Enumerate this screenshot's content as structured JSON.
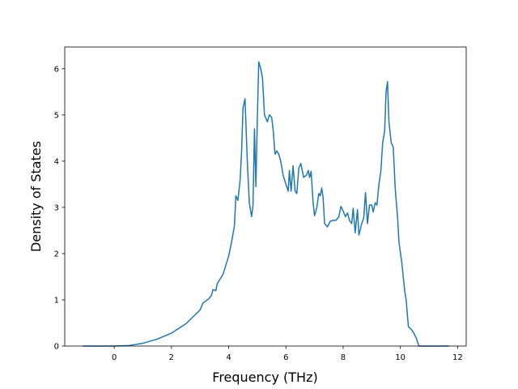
{
  "chart_data": {
    "type": "line",
    "xlabel": "Frequency (THz)",
    "ylabel": "Density of States",
    "color": "#1f77b4",
    "x": [
      -1.1,
      0,
      0.5,
      1,
      1.5,
      2,
      2.5,
      3,
      3.1,
      3.3,
      3.4,
      3.45,
      3.55,
      3.6,
      3.8,
      3.9,
      4.0,
      4.1,
      4.2,
      4.25,
      4.32,
      4.4,
      4.45,
      4.5,
      4.57,
      4.65,
      4.72,
      4.8,
      4.85,
      4.9,
      4.95,
      5.0,
      5.05,
      5.12,
      5.18,
      5.25,
      5.35,
      5.42,
      5.5,
      5.55,
      5.62,
      5.68,
      5.75,
      5.82,
      5.9,
      6.0,
      6.08,
      6.12,
      6.18,
      6.25,
      6.32,
      6.38,
      6.45,
      6.52,
      6.62,
      6.72,
      6.78,
      6.83,
      6.88,
      6.95,
      7.0,
      7.08,
      7.15,
      7.2,
      7.25,
      7.3,
      7.35,
      7.45,
      7.55,
      7.65,
      7.75,
      7.85,
      7.92,
      8.0,
      8.08,
      8.15,
      8.22,
      8.3,
      8.35,
      8.42,
      8.5,
      8.55,
      8.65,
      8.72,
      8.78,
      8.85,
      8.92,
      9.0,
      9.05,
      9.12,
      9.18,
      9.25,
      9.32,
      9.38,
      9.45,
      9.5,
      9.55,
      9.6,
      9.68,
      9.75,
      9.82,
      9.9,
      9.95,
      10.05,
      10.1,
      10.15,
      10.2,
      10.28,
      10.35,
      10.45,
      10.55,
      10.65,
      11.0,
      11.7
    ],
    "values": [
      0,
      0,
      0.01,
      0.06,
      0.15,
      0.28,
      0.48,
      0.78,
      0.93,
      1.02,
      1.1,
      1.22,
      1.2,
      1.35,
      1.55,
      1.75,
      1.95,
      2.25,
      2.6,
      3.25,
      3.15,
      3.6,
      4.2,
      5.15,
      5.35,
      4.0,
      3.1,
      2.8,
      3.05,
      4.7,
      3.45,
      4.9,
      6.15,
      6.0,
      5.8,
      5.0,
      4.85,
      5.0,
      4.95,
      4.7,
      4.15,
      4.22,
      4.15,
      4.0,
      3.7,
      3.5,
      3.35,
      3.8,
      3.35,
      3.9,
      3.35,
      3.3,
      3.85,
      3.95,
      3.65,
      3.7,
      3.8,
      3.65,
      3.78,
      3.1,
      2.82,
      3.0,
      3.3,
      3.25,
      3.42,
      3.2,
      2.65,
      2.58,
      2.7,
      2.72,
      2.72,
      2.8,
      3.02,
      2.92,
      2.8,
      2.88,
      2.72,
      2.65,
      2.98,
      2.45,
      2.95,
      2.4,
      2.65,
      2.78,
      3.32,
      2.65,
      3.05,
      3.05,
      2.9,
      3.1,
      3.05,
      3.5,
      3.8,
      4.4,
      4.65,
      5.5,
      5.72,
      4.85,
      4.4,
      4.3,
      3.4,
      2.8,
      2.25,
      1.8,
      1.5,
      1.2,
      1.0,
      0.42,
      0.38,
      0.3,
      0.18,
      0.0,
      0,
      0
    ],
    "xlim": [
      -1.73,
      12.3
    ],
    "ylim": [
      0,
      6.47
    ],
    "xticks": [
      0,
      2,
      4,
      6,
      8,
      10,
      12
    ],
    "yticks": [
      0,
      1,
      2,
      3,
      4,
      5,
      6
    ]
  }
}
